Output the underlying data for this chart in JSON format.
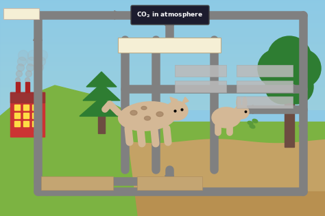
{
  "sky_color": "#8ECAE6",
  "sky_top": "#A8D8EA",
  "ground_green": "#7CB342",
  "ground_green2": "#8BC34A",
  "soil_color": "#C4A265",
  "soil_dark": "#B8955A",
  "hill_color": "#7CB342",
  "arrow_color": "#808080",
  "arrow_lw": 9,
  "co2_box_bg": "#1C1C2E",
  "co2_box_fg": "#FFFFFF",
  "label_box_bg": "#F5EFD5",
  "blank_box": "#C8C8C8",
  "factory_red": "#CC3333",
  "factory_dark": "#993333",
  "window_yellow": "#FFDD44",
  "smoke_gray": "#AAAAAA",
  "tree_green_dark": "#2E7D32",
  "tree_green_mid": "#388E3C",
  "trunk_brown": "#6D4C41",
  "cat_body": "#D4B896",
  "cat_spot": "#A08060",
  "rabbit_body": "#D4B896",
  "leaves_green": "#5A9A3A"
}
